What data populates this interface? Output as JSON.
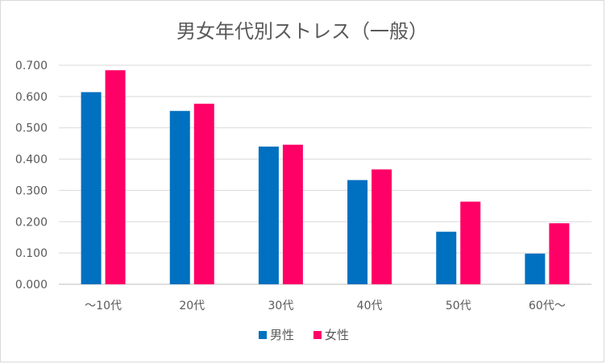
{
  "chart_data": {
    "type": "bar",
    "title": "男女年代別ストレス（一般）",
    "xlabel": "",
    "ylabel": "",
    "categories": [
      "～10代",
      "20代",
      "30代",
      "40代",
      "50代",
      "60代～"
    ],
    "series": [
      {
        "name": "男性",
        "color": "#0070c0",
        "values": [
          0.614,
          0.554,
          0.44,
          0.333,
          0.168,
          0.098
        ]
      },
      {
        "name": "女性",
        "color": "#ff0066",
        "values": [
          0.684,
          0.577,
          0.446,
          0.367,
          0.264,
          0.195
        ]
      }
    ],
    "ylim": [
      0,
      0.7
    ],
    "yticks": [
      "0.000",
      "0.100",
      "0.200",
      "0.300",
      "0.400",
      "0.500",
      "0.600",
      "0.700"
    ],
    "grid": true,
    "legend_position": "bottom"
  }
}
